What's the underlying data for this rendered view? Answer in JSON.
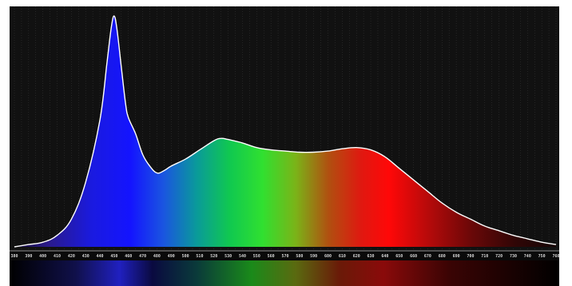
{
  "chart_data": {
    "type": "area",
    "title": "",
    "xlabel": "",
    "ylabel": "",
    "xlim": [
      380,
      760
    ],
    "ylim": [
      0,
      1
    ],
    "grid": true,
    "x_ticks": [
      380,
      390,
      400,
      410,
      420,
      430,
      440,
      450,
      460,
      470,
      480,
      490,
      500,
      510,
      520,
      530,
      540,
      550,
      560,
      570,
      580,
      590,
      600,
      610,
      620,
      630,
      640,
      650,
      660,
      670,
      680,
      690,
      700,
      710,
      720,
      730,
      740,
      750,
      760
    ],
    "series": [
      {
        "x": [
          380,
          390,
          400,
          410,
          420,
          430,
          440,
          445,
          448,
          450,
          452,
          455,
          458,
          460,
          465,
          470,
          475,
          480,
          485,
          490,
          500,
          510,
          520,
          525,
          530,
          540,
          550,
          560,
          570,
          580,
          590,
          600,
          610,
          620,
          630,
          640,
          650,
          660,
          670,
          680,
          690,
          700,
          710,
          720,
          730,
          740,
          750,
          760
        ],
        "y": [
          0.0,
          0.01,
          0.02,
          0.05,
          0.12,
          0.28,
          0.55,
          0.8,
          0.95,
          1.0,
          0.94,
          0.78,
          0.62,
          0.56,
          0.49,
          0.4,
          0.35,
          0.32,
          0.33,
          0.35,
          0.38,
          0.42,
          0.46,
          0.47,
          0.465,
          0.45,
          0.43,
          0.42,
          0.415,
          0.41,
          0.41,
          0.415,
          0.425,
          0.43,
          0.42,
          0.39,
          0.34,
          0.29,
          0.24,
          0.19,
          0.15,
          0.12,
          0.09,
          0.07,
          0.05,
          0.035,
          0.02,
          0.01
        ]
      }
    ]
  },
  "colors": {
    "plot_background": "#111111",
    "grid": "#3a3a3a",
    "outline": "#ffffff",
    "axis_line": "#bbbbbb"
  }
}
